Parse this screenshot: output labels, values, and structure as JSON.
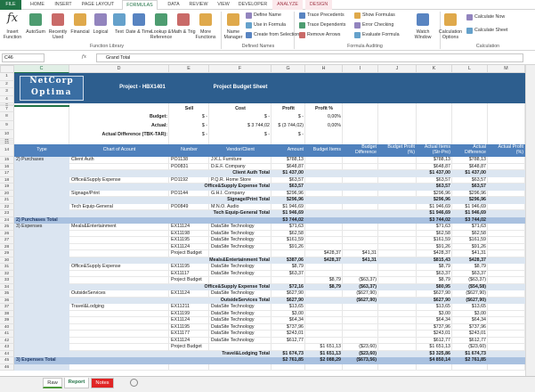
{
  "ribbon": {
    "tabs": [
      "FILE",
      "HOME",
      "INSERT",
      "PAGE LAYOUT",
      "FORMULAS",
      "DATA",
      "REVIEW",
      "VIEW",
      "DEVELOPER",
      "ANALYZE",
      "DESIGN"
    ],
    "active_tab": "FORMULAS",
    "insert_function_icon": "fx",
    "groups": [
      {
        "label": "Function Library",
        "buttons": [
          "Insert Function",
          "AutoSum",
          "Recently Used",
          "Financial",
          "Logical",
          "Text",
          "Date & Time",
          "Lookup & Reference",
          "Math & Trig",
          "More Functions"
        ]
      },
      {
        "label": "Defined Names",
        "buttons": [
          "Name Manager",
          "Define Name",
          "Use in Formula",
          "Create from Selection"
        ]
      },
      {
        "label": "Formula Auditing",
        "buttons": [
          "Trace Precedents",
          "Trace Dependents",
          "Remove Arrows",
          "Show Formulas",
          "Error Checking",
          "Evaluate Formula",
          "Watch Window"
        ]
      },
      {
        "label": "Calculation",
        "buttons": [
          "Calculation Options",
          "Calculate Now",
          "Calculate Sheet"
        ]
      }
    ]
  },
  "formula_bar": {
    "name_box": "C46",
    "fx": "fx",
    "formula": "Grand Total"
  },
  "columns": [
    "C",
    "D",
    "E",
    "F",
    "G",
    "H",
    "I",
    "J",
    "K",
    "L",
    "M"
  ],
  "selected_column": "C",
  "report_header": {
    "logo": [
      "NetCorp",
      "Optima"
    ],
    "project": "Project - HBX1401",
    "title": "Project Budget Sheet"
  },
  "rows": [
    {
      "n": 1
    },
    {
      "n": 2
    },
    {
      "n": 3
    },
    {
      "n": 4
    },
    {
      "n": 5
    },
    {
      "n": 6
    },
    {
      "n": 7,
      "cells": {
        "E": "Sell",
        "F": "Cost",
        "G": "Profit",
        "H": "Profit %"
      }
    },
    {
      "n": 8,
      "cells": {
        "D": "Budget:",
        "E": "$ -",
        "F": "$ -",
        "G": "$ -",
        "H": "0,00%"
      }
    },
    {
      "n": 9,
      "cells": {
        "D": "Actual:",
        "E": "$ -",
        "F": "$ 3 744,02",
        "G": "$ (3 744,02)",
        "H": "0,00%"
      }
    },
    {
      "n": 10,
      "cells": {
        "D": "Actual Difference (TBK-TAR):",
        "E": "$ -",
        "F": "$ -",
        "G": "$ -"
      }
    },
    {
      "n": 11
    },
    {
      "n": 12
    },
    {
      "n": 13
    },
    {
      "n": 14,
      "cells": {
        "C": "Type",
        "D": "Chart of Acount",
        "E": "Number",
        "F": "Vendor/Client",
        "G": "Amount",
        "H": "Budget Items",
        "I": "Budget Difference",
        "J": "Budget Profit (%)",
        "K": "Actual Items (Str-Pro)",
        "L": "Actual Difference",
        "M": "Actual Profit (%)"
      }
    },
    {
      "n": 15,
      "cells": {
        "C": "2) Purchases",
        "D": "Client Auth",
        "E": "PO1138",
        "F": "J.K.L Furniture",
        "G": "$788,13",
        "K": "$788,13",
        "L": "$788,13"
      }
    },
    {
      "n": 16,
      "cells": {
        "E": "PO0831",
        "F": "D.E.F. Company",
        "G": "$648,87",
        "K": "$648,87",
        "L": "$648,87"
      }
    },
    {
      "n": 17,
      "cells": {
        "D": "Client Auth Total",
        "G": "$1 437,00",
        "K": "$1 437,00",
        "L": "$1 437,00"
      }
    },
    {
      "n": 18,
      "cells": {
        "D": "Office&Supply Expense",
        "E": "PO1192",
        "F": "P.Q.R. Home Store",
        "G": "$63,57",
        "K": "$63,57",
        "L": "$63,57"
      }
    },
    {
      "n": 19,
      "cells": {
        "D": "Office&Supply Expense Total",
        "G": "$63,57",
        "K": "$63,57",
        "L": "$63,57"
      }
    },
    {
      "n": 20,
      "cells": {
        "D": "Signage/Print",
        "E": "PO1144",
        "F": "G.H.I. Company",
        "G": "$296,96",
        "K": "$296,96",
        "L": "$296,96"
      }
    },
    {
      "n": 21,
      "cells": {
        "D": "Signage/Print Total",
        "G": "$296,96",
        "K": "$296,96",
        "L": "$296,96"
      }
    },
    {
      "n": 22,
      "cells": {
        "D": "Tech Equip-General",
        "E": "PO0849",
        "F": "M.N.O. Audio",
        "G": "$1 946,69",
        "K": "$1 946,69",
        "L": "$1 946,69"
      }
    },
    {
      "n": 23,
      "cells": {
        "D": "Tech Equip-General Total",
        "G": "$1 946,69",
        "K": "$1 946,69",
        "L": "$1 946,69"
      }
    },
    {
      "n": 24,
      "cells": {
        "C": "2) Purchases Total",
        "G": "$3 744,02",
        "K": "$3 744,02",
        "L": "$3 744,02"
      }
    },
    {
      "n": 25,
      "cells": {
        "C": "3) Expenses",
        "D": "Meals&Entertainment",
        "E": "EX11124",
        "F": "DataSite Technology",
        "G": "$71,63",
        "K": "$71,63",
        "L": "$71,63"
      }
    },
    {
      "n": 26,
      "cells": {
        "E": "EX11198",
        "F": "DataSite Technology",
        "G": "$62,58",
        "K": "$62,58",
        "L": "$62,58"
      }
    },
    {
      "n": 27,
      "cells": {
        "E": "EX11195",
        "F": "DataSite Technology",
        "G": "$161,59",
        "K": "$161,59",
        "L": "$161,59"
      }
    },
    {
      "n": 28,
      "cells": {
        "E": "EX11124",
        "F": "DataSite Technology",
        "G": "$91,26",
        "K": "$91,26",
        "L": "$91,26"
      }
    },
    {
      "n": 29,
      "cells": {
        "E": "Project Budget",
        "H": "$428,37",
        "I": "$41,31",
        "K": "$428,37",
        "L": "$41,31"
      }
    },
    {
      "n": 30,
      "cells": {
        "D": "Meals&Entertainment Total",
        "G": "$387,06",
        "H": "$428,37",
        "I": "$41,31",
        "K": "$815,43",
        "L": "$428,37"
      }
    },
    {
      "n": 31,
      "cells": {
        "D": "Office&Supply Expense",
        "E": "EX11195",
        "F": "DataSite Technology",
        "G": "$8,79",
        "K": "$8,79",
        "L": "$8,79"
      }
    },
    {
      "n": 32,
      "cells": {
        "E": "EX11117",
        "F": "DataSite Technology",
        "G": "$63,37",
        "K": "$63,37",
        "L": "$63,37"
      }
    },
    {
      "n": 33,
      "cells": {
        "E": "Project Budget",
        "H": "$8,79",
        "I": "($63,37)",
        "K": "$8,79",
        "L": "($63,37)"
      }
    },
    {
      "n": 34,
      "cells": {
        "D": "Office&Supply Expense Total",
        "G": "$72,16",
        "H": "$8,79",
        "I": "($63,37)",
        "K": "$80,95",
        "L": "($54,58)"
      }
    },
    {
      "n": 35,
      "cells": {
        "D": "OutsideServices",
        "E": "EX11124",
        "F": "DataSite Technology",
        "G": "$627,90",
        "I": "($627,90)",
        "K": "$627,90",
        "L": "($627,90)"
      }
    },
    {
      "n": 36,
      "cells": {
        "D": "OutsideServices Total",
        "G": "$627,90",
        "I": "($627,90)",
        "K": "$627,90",
        "L": "($627,90)"
      }
    },
    {
      "n": 37,
      "cells": {
        "D": "Travel&Lodging",
        "E": "EX11211",
        "F": "DataSite Technology",
        "G": "$13,65",
        "K": "$13,65",
        "L": "$13,65"
      }
    },
    {
      "n": 38,
      "cells": {
        "E": "EX11199",
        "F": "DataSite Technology",
        "G": "$3,00",
        "K": "$3,00",
        "L": "$3,00"
      }
    },
    {
      "n": 39,
      "cells": {
        "E": "EX11124",
        "F": "DataSite Technology",
        "G": "$64,34",
        "K": "$64,34",
        "L": "$64,34"
      }
    },
    {
      "n": 40,
      "cells": {
        "E": "EX11195",
        "F": "DataSite Technology",
        "G": "$737,96",
        "K": "$737,96",
        "L": "$737,96"
      }
    },
    {
      "n": 41,
      "cells": {
        "E": "EX11177",
        "F": "DataSite Technology",
        "G": "$243,01",
        "K": "$243,01",
        "L": "$243,01"
      }
    },
    {
      "n": 42,
      "cells": {
        "E": "EX11124",
        "F": "DataSite Technology",
        "G": "$612,77",
        "K": "$612,77",
        "L": "$612,77"
      }
    },
    {
      "n": 43,
      "cells": {
        "E": "Project Budget",
        "H": "$1 651,13",
        "I": "($23,60)",
        "K": "$1 651,13",
        "L": "($23,60)"
      }
    },
    {
      "n": 44,
      "cells": {
        "D": "Travel&Lodging Total",
        "G": "$1 674,73",
        "H": "$1 651,13",
        "I": "($23,60)",
        "K": "$3 325,86",
        "L": "$1 674,73"
      }
    },
    {
      "n": 45,
      "cells": {
        "C": "3) Expenses Total",
        "G": "$2 761,85",
        "H": "$2 088,29",
        "I": "($673,56)",
        "K": "$4 850,14",
        "L": "$2 761,85"
      }
    },
    {
      "n": 46
    }
  ],
  "sheet_tabs": [
    {
      "name": "Raw",
      "color": "#4e9a3a"
    },
    {
      "name": "Report"
    },
    {
      "name": "Notes",
      "color": "#e02424"
    }
  ],
  "active_sheet": "Report"
}
